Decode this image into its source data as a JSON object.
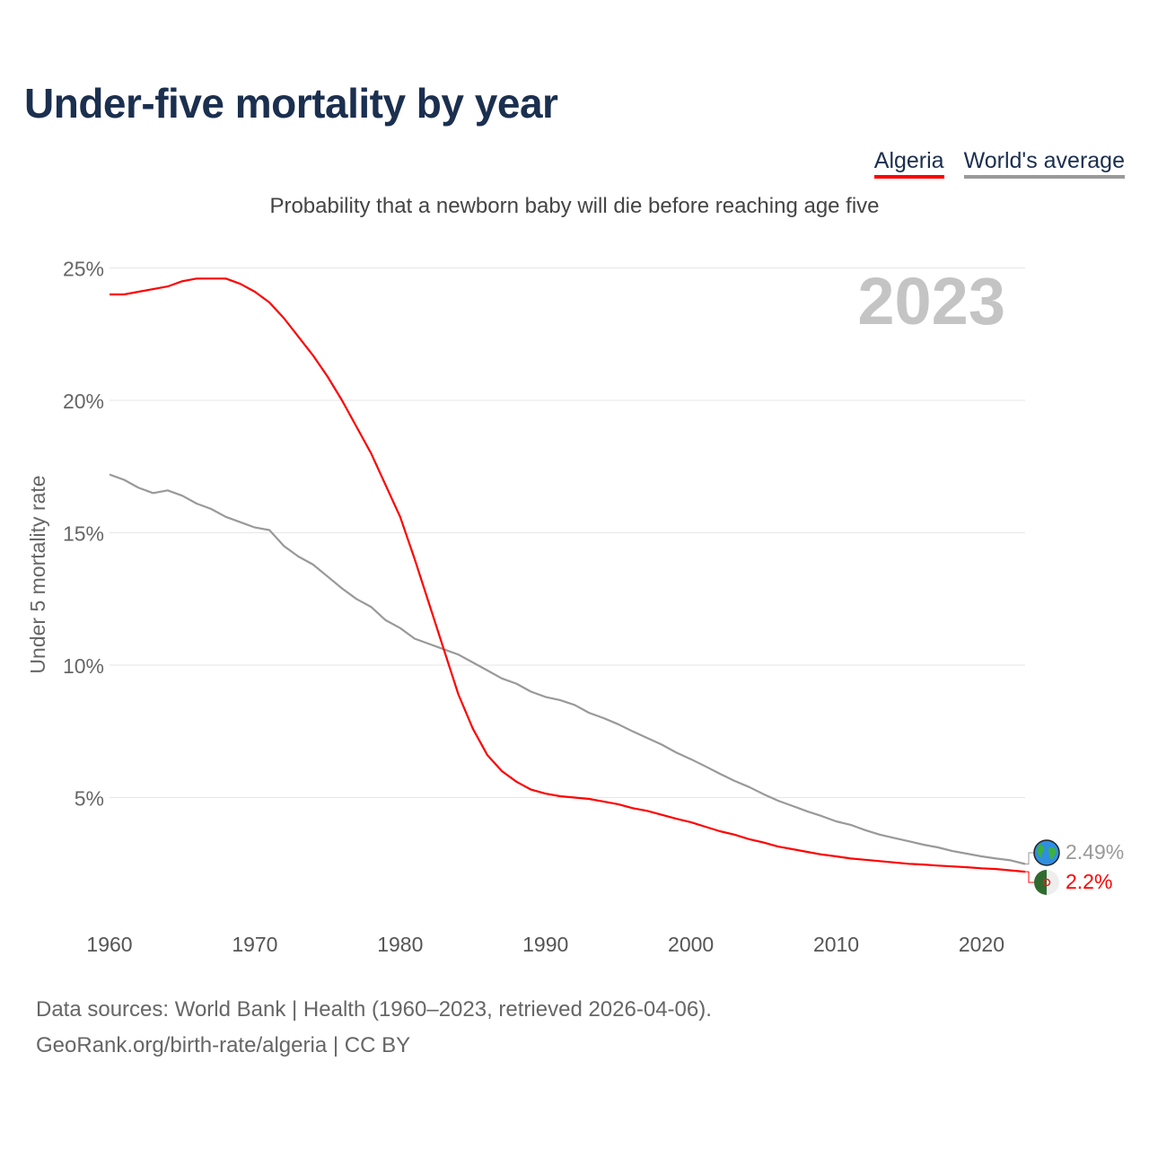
{
  "title": "Under-five mortality by year",
  "subtitle": "Probability that a newborn baby will die before reaching age five",
  "year_watermark": "2023",
  "footer": {
    "line1": "Data sources: World Bank | Health (1960–2023, retrieved 2026-04-06).",
    "line2": "GeoRank.org/birth-rate/algeria | CC BY"
  },
  "colors": {
    "algeria": "#ff0000",
    "world": "#999999",
    "title": "#1b2f4f"
  },
  "chart_data": {
    "type": "line",
    "title": "Under-five mortality by year",
    "ylabel": "Under 5 mortality rate",
    "xlabel": "",
    "xlim": [
      1960,
      2023
    ],
    "ylim": [
      0,
      25
    ],
    "x_ticks": [
      1960,
      1970,
      1980,
      1990,
      2000,
      2010,
      2020
    ],
    "x_tick_labels": [
      "1960",
      "1970",
      "1980",
      "1990",
      "2000",
      "2010",
      "2020"
    ],
    "y_ticks": [
      5,
      10,
      15,
      20,
      25
    ],
    "y_tick_labels": [
      "5%",
      "10%",
      "15%",
      "20%",
      "25%"
    ],
    "grid": true,
    "legend_position": "top-right",
    "series": [
      {
        "name": "Algeria",
        "end_label": "2.2%",
        "icon": "algeria-flag-icon",
        "values": [
          24.0,
          24.0,
          24.1,
          24.2,
          24.3,
          24.5,
          24.6,
          24.6,
          24.6,
          24.4,
          24.1,
          23.7,
          23.1,
          22.4,
          21.7,
          20.9,
          20.0,
          19.0,
          18.0,
          16.8,
          15.6,
          14.0,
          12.3,
          10.6,
          8.9,
          7.6,
          6.6,
          6.0,
          5.6,
          5.3,
          5.15,
          5.05,
          5.0,
          4.95,
          4.85,
          4.75,
          4.6,
          4.5,
          4.35,
          4.2,
          4.07,
          3.9,
          3.73,
          3.6,
          3.43,
          3.3,
          3.15,
          3.05,
          2.95,
          2.85,
          2.78,
          2.7,
          2.65,
          2.6,
          2.55,
          2.5,
          2.47,
          2.43,
          2.4,
          2.37,
          2.33,
          2.3,
          2.25,
          2.2
        ]
      },
      {
        "name": "World's average",
        "end_label": "2.49%",
        "icon": "globe-icon",
        "values": [
          17.2,
          17.0,
          16.7,
          16.5,
          16.6,
          16.4,
          16.1,
          15.9,
          15.6,
          15.4,
          15.2,
          15.1,
          14.5,
          14.1,
          13.8,
          13.35,
          12.9,
          12.5,
          12.2,
          11.7,
          11.4,
          11.0,
          10.8,
          10.6,
          10.4,
          10.1,
          9.8,
          9.5,
          9.3,
          9.0,
          8.8,
          8.68,
          8.5,
          8.2,
          8.0,
          7.77,
          7.5,
          7.25,
          7.0,
          6.7,
          6.45,
          6.18,
          5.9,
          5.63,
          5.4,
          5.13,
          4.88,
          4.68,
          4.48,
          4.3,
          4.1,
          3.97,
          3.77,
          3.6,
          3.47,
          3.35,
          3.22,
          3.12,
          2.98,
          2.88,
          2.78,
          2.7,
          2.63,
          2.49
        ]
      }
    ]
  }
}
